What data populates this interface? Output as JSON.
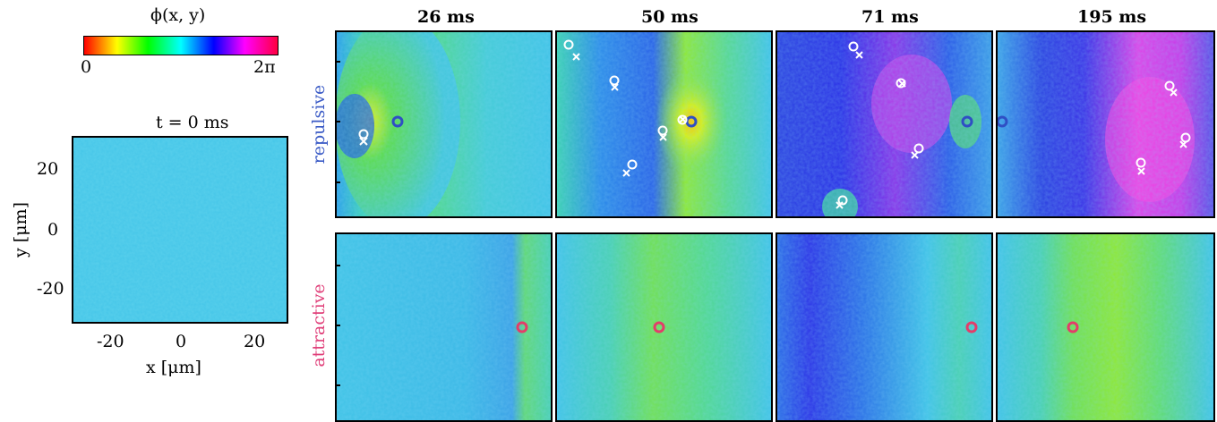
{
  "colorbar": {
    "label": "ϕ(x, y)",
    "min_label": "0",
    "max_label": "2π",
    "colormap": "hsv"
  },
  "reference_panel": {
    "title": "t = 0 ms",
    "xlabel": "x [μm]",
    "ylabel": "y [μm]",
    "xticks": [
      "-20",
      "0",
      "20"
    ],
    "yticks": [
      "20",
      "0",
      "-20"
    ]
  },
  "time_labels": [
    "26 ms",
    "50 ms",
    "71 ms",
    "195 ms"
  ],
  "row_labels": {
    "repulsive": "repulsive",
    "attractive": "attractive"
  },
  "colors": {
    "repulsive_label": "#3b5bc6",
    "attractive_label": "#e0407a",
    "impurity_repulsive": "#2f4fc4",
    "impurity_attractive": "#e33d6a",
    "vortex_marker": "#ffffff",
    "background_phase": "#3ec3e6"
  },
  "legend_note": {
    "impurity": "circle",
    "vortex": "x",
    "antivortex": "open-circle"
  }
}
